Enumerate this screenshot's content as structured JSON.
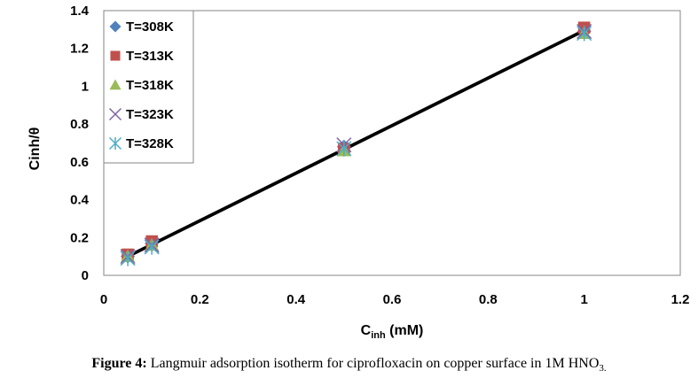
{
  "chart_data": {
    "type": "scatter",
    "title": "",
    "xlabel": {
      "main": "C",
      "sub": "inh",
      "rest": " (mM)"
    },
    "ylabel": "Cinh/θ",
    "xlim": [
      0,
      1.2
    ],
    "ylim": [
      0,
      1.4
    ],
    "x_ticks": [
      "0",
      "0.2",
      "0.4",
      "0.6",
      "0.8",
      "1",
      "1.2"
    ],
    "y_ticks": [
      "0",
      "0.2",
      "0.4",
      "0.6",
      "0.8",
      "1",
      "1.2",
      "1.4"
    ],
    "x": [
      0.05,
      0.1,
      0.5,
      1.0
    ],
    "series": [
      {
        "name": "T=308K",
        "marker": "diamond",
        "color": "#4F81BD",
        "values": [
          0.1,
          0.17,
          0.68,
          1.29
        ]
      },
      {
        "name": "T=313K",
        "marker": "square",
        "color": "#C0504D",
        "values": [
          0.11,
          0.18,
          0.67,
          1.31
        ]
      },
      {
        "name": "T=318K",
        "marker": "triangle",
        "color": "#9BBB59",
        "values": [
          0.1,
          0.16,
          0.66,
          1.28
        ]
      },
      {
        "name": "T=323K",
        "marker": "x",
        "color": "#8064A2",
        "values": [
          0.1,
          0.16,
          0.69,
          1.29
        ]
      },
      {
        "name": "T=328K",
        "marker": "star",
        "color": "#4BACC6",
        "values": [
          0.09,
          0.15,
          0.67,
          1.28
        ]
      }
    ],
    "fit_line": {
      "x": [
        0.05,
        1.0
      ],
      "y": [
        0.1,
        1.295
      ],
      "color": "#000000"
    }
  },
  "caption": {
    "label": "Figure 4:",
    "text": " Langmuir adsorption isotherm for ciprofloxacin on copper surface in 1M HNO",
    "sub": "3."
  }
}
